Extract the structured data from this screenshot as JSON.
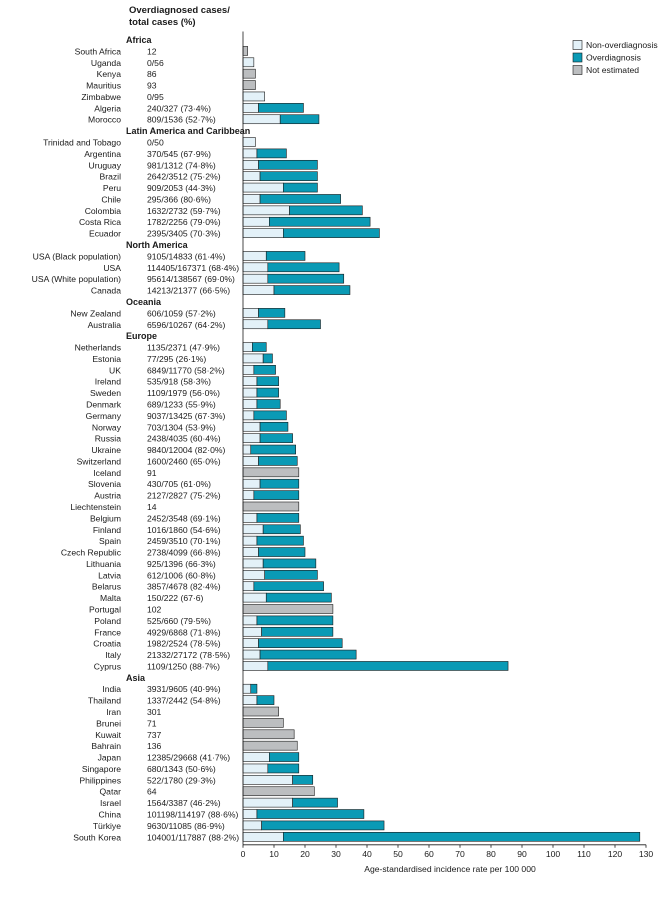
{
  "chart_data": {
    "type": "bar",
    "stacked": true,
    "orientation": "horizontal",
    "column_header": [
      "Overdiagnosed cases/",
      "total cases (%)"
    ],
    "xlabel": "Age-standardised incidence rate per 100 000",
    "xlim": [
      0,
      130
    ],
    "xticks": [
      0,
      10,
      20,
      30,
      40,
      50,
      60,
      70,
      80,
      90,
      100,
      110,
      120,
      130
    ],
    "legend": {
      "position": "top-right",
      "items": [
        {
          "key": "non",
          "label": "Non-overdiagnosis",
          "color": "#e3f1f8"
        },
        {
          "key": "over",
          "label": "Overdiagnosis",
          "color": "#0a9ab5"
        },
        {
          "key": "ne",
          "label": "Not estimated",
          "color": "#bcbec0"
        }
      ]
    },
    "rows": [
      {
        "kind": "group",
        "label": "Africa"
      },
      {
        "label": "South Africa",
        "stat": "12",
        "non": null,
        "over": null,
        "ne": 1.5
      },
      {
        "label": "Uganda",
        "stat": "0/56",
        "non": 3.5,
        "over": 0,
        "ne": null
      },
      {
        "label": "Kenya",
        "stat": "86",
        "non": null,
        "over": null,
        "ne": 4
      },
      {
        "label": "Mauritius",
        "stat": "93",
        "non": null,
        "over": null,
        "ne": 4
      },
      {
        "label": "Zimbabwe",
        "stat": "0/95",
        "non": 7,
        "over": 0,
        "ne": null
      },
      {
        "label": "Algeria",
        "stat": "240/327 (73·4%)",
        "non": 5,
        "over": 14.5,
        "ne": null
      },
      {
        "label": "Morocco",
        "stat": "809/1536 (52·7%)",
        "non": 12,
        "over": 12.5,
        "ne": null
      },
      {
        "kind": "group",
        "label": "Latin America and Caribbean"
      },
      {
        "label": "Trinidad and Tobago",
        "stat": "0/50",
        "non": 4,
        "over": 0,
        "ne": null
      },
      {
        "label": "Argentina",
        "stat": "370/545 (67·9%)",
        "non": 4.5,
        "over": 9.5,
        "ne": null
      },
      {
        "label": "Uruguay",
        "stat": "981/1312 (74·8%)",
        "non": 5,
        "over": 19,
        "ne": null
      },
      {
        "label": "Brazil",
        "stat": "2642/3512 (75·2%)",
        "non": 5.5,
        "over": 18.5,
        "ne": null
      },
      {
        "label": "Peru",
        "stat": "909/2053 (44·3%)",
        "non": 13,
        "over": 11,
        "ne": null
      },
      {
        "label": "Chile",
        "stat": "295/366 (80·6%)",
        "non": 5.5,
        "over": 26,
        "ne": null
      },
      {
        "label": "Colombia",
        "stat": "1632/2732 (59·7%)",
        "non": 15,
        "over": 23.5,
        "ne": null
      },
      {
        "label": "Costa Rica",
        "stat": "1782/2256 (79·0%)",
        "non": 8.5,
        "over": 32.5,
        "ne": null
      },
      {
        "label": "Ecuador",
        "stat": "2395/3405 (70·3%)",
        "non": 13,
        "over": 31,
        "ne": null
      },
      {
        "kind": "group",
        "label": "North America"
      },
      {
        "label": "USA (Black population)",
        "stat": "9105/14833 (61·4%)",
        "non": 7.5,
        "over": 12.5,
        "ne": null
      },
      {
        "label": "USA",
        "stat": "114405/167371 (68·4%)",
        "non": 8,
        "over": 23,
        "ne": null
      },
      {
        "label": "USA (White population)",
        "stat": "95614/138567 (69·0%)",
        "non": 8,
        "over": 24.5,
        "ne": null
      },
      {
        "label": "Canada",
        "stat": "14213/21377 (66·5%)",
        "non": 10,
        "over": 24.5,
        "ne": null
      },
      {
        "kind": "group",
        "label": "Oceania"
      },
      {
        "label": "New Zealand",
        "stat": "606/1059 (57·2%)",
        "non": 5,
        "over": 8.5,
        "ne": null
      },
      {
        "label": "Australia",
        "stat": "6596/10267 (64·2%)",
        "non": 8,
        "over": 17,
        "ne": null
      },
      {
        "kind": "group",
        "label": "Europe"
      },
      {
        "label": "Netherlands",
        "stat": "1135/2371 (47·9%)",
        "non": 3,
        "over": 4.5,
        "ne": null
      },
      {
        "label": "Estonia",
        "stat": "77/295 (26·1%)",
        "non": 6.5,
        "over": 3,
        "ne": null
      },
      {
        "label": "UK",
        "stat": "6849/11770 (58·2%)",
        "non": 3.5,
        "over": 7,
        "ne": null
      },
      {
        "label": "Ireland",
        "stat": "535/918 (58·3%)",
        "non": 4.5,
        "over": 7,
        "ne": null
      },
      {
        "label": "Sweden",
        "stat": "1109/1979 (56·0%)",
        "non": 4.5,
        "over": 7,
        "ne": null
      },
      {
        "label": "Denmark",
        "stat": "689/1233 (55·9%)",
        "non": 4.5,
        "over": 7.5,
        "ne": null
      },
      {
        "label": "Germany",
        "stat": "9037/13425 (67·3%)",
        "non": 3.5,
        "over": 10.5,
        "ne": null
      },
      {
        "label": "Norway",
        "stat": "703/1304 (53·9%)",
        "non": 5.5,
        "over": 9,
        "ne": null
      },
      {
        "label": "Russia",
        "stat": "2438/4035 (60·4%)",
        "non": 5.5,
        "over": 10.5,
        "ne": null
      },
      {
        "label": "Ukraine",
        "stat": "9840/12004 (82·0%)",
        "non": 2.5,
        "over": 14.5,
        "ne": null
      },
      {
        "label": "Switzerland",
        "stat": "1600/2460 (65·0%)",
        "non": 5,
        "over": 12.5,
        "ne": null
      },
      {
        "label": "Iceland",
        "stat": "91",
        "non": null,
        "over": null,
        "ne": 18
      },
      {
        "label": "Slovenia",
        "stat": "430/705 (61·0%)",
        "non": 5.5,
        "over": 12.5,
        "ne": null
      },
      {
        "label": "Austria",
        "stat": "2127/2827 (75·2%)",
        "non": 3.5,
        "over": 14.5,
        "ne": null
      },
      {
        "label": "Liechtenstein",
        "stat": "14",
        "non": null,
        "over": null,
        "ne": 18
      },
      {
        "label": "Belgium",
        "stat": "2452/3548 (69·1%)",
        "non": 4.5,
        "over": 13.5,
        "ne": null
      },
      {
        "label": "Finland",
        "stat": "1016/1860 (54·6%)",
        "non": 6.5,
        "over": 12,
        "ne": null
      },
      {
        "label": "Spain",
        "stat": "2459/3510 (70·1%)",
        "non": 4.5,
        "over": 15,
        "ne": null
      },
      {
        "label": "Czech Republic",
        "stat": "2738/4099 (66·8%)",
        "non": 5,
        "over": 15,
        "ne": null
      },
      {
        "label": "Lithuania",
        "stat": "925/1396 (66·3%)",
        "non": 6.5,
        "over": 17,
        "ne": null
      },
      {
        "label": "Latvia",
        "stat": "612/1006 (60·8%)",
        "non": 7,
        "over": 17,
        "ne": null
      },
      {
        "label": "Belarus",
        "stat": "3857/4678 (82·4%)",
        "non": 3.5,
        "over": 22.5,
        "ne": null
      },
      {
        "label": "Malta",
        "stat": "150/222 (67·6)",
        "non": 7.5,
        "over": 21,
        "ne": null
      },
      {
        "label": "Portugal",
        "stat": "102",
        "non": null,
        "over": null,
        "ne": 29
      },
      {
        "label": "Poland",
        "stat": "525/660 (79·5%)",
        "non": 4.5,
        "over": 24.5,
        "ne": null
      },
      {
        "label": "France",
        "stat": "4929/6868 (71·8%)",
        "non": 6,
        "over": 23,
        "ne": null
      },
      {
        "label": "Croatia",
        "stat": "1982/2524 (78·5%)",
        "non": 5,
        "over": 27,
        "ne": null
      },
      {
        "label": "Italy",
        "stat": "21332/27172 (78·5%)",
        "non": 5.5,
        "over": 31,
        "ne": null
      },
      {
        "label": "Cyprus",
        "stat": "1109/1250 (88·7%)",
        "non": 8,
        "over": 77.5,
        "ne": null
      },
      {
        "kind": "group",
        "label": "Asia"
      },
      {
        "label": "India",
        "stat": "3931/9605 (40·9%)",
        "non": 2.5,
        "over": 2,
        "ne": null
      },
      {
        "label": "Thailand",
        "stat": "1337/2442 (54·8%)",
        "non": 4.5,
        "over": 5.5,
        "ne": null
      },
      {
        "label": "Iran",
        "stat": "301",
        "non": null,
        "over": null,
        "ne": 11.5
      },
      {
        "label": "Brunei",
        "stat": "71",
        "non": null,
        "over": null,
        "ne": 13
      },
      {
        "label": "Kuwait",
        "stat": "737",
        "non": null,
        "over": null,
        "ne": 16.5
      },
      {
        "label": "Bahrain",
        "stat": "136",
        "non": null,
        "over": null,
        "ne": 17.5
      },
      {
        "label": "Japan",
        "stat": "12385/29668 (41·7%)",
        "non": 8.5,
        "over": 9.5,
        "ne": null
      },
      {
        "label": "Singapore",
        "stat": "680/1343 (50·6%)",
        "non": 8,
        "over": 10,
        "ne": null
      },
      {
        "label": "Philippines",
        "stat": "522/1780 (29·3%)",
        "non": 16,
        "over": 6.5,
        "ne": null
      },
      {
        "label": "Qatar",
        "stat": "64",
        "non": null,
        "over": null,
        "ne": 23
      },
      {
        "label": "Israel",
        "stat": "1564/3387 (46·2%)",
        "non": 16,
        "over": 14.5,
        "ne": null
      },
      {
        "label": "China",
        "stat": "101198/114197 (88·6%)",
        "non": 4.5,
        "over": 34.5,
        "ne": null
      },
      {
        "label": "Türkiye",
        "stat": "9630/11085 (86·9%)",
        "non": 6,
        "over": 39.5,
        "ne": null
      },
      {
        "label": "South Korea",
        "stat": "104001/117887 (88·2%)",
        "non": 13,
        "over": 115,
        "ne": null
      }
    ]
  }
}
